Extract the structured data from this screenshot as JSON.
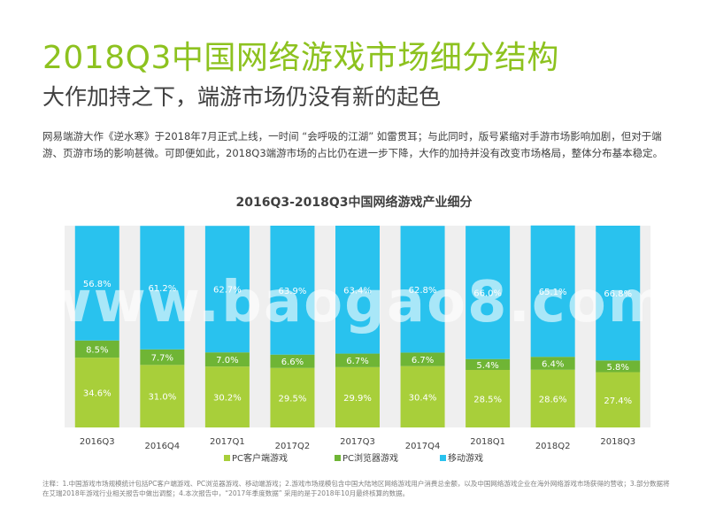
{
  "header": {
    "title": "2018Q3中国网络游戏市场细分结构",
    "subtitle": "大作加持之下，端游市场仍没有新的起色"
  },
  "body_text": "网易端游大作《逆水寒》于2018年7月正式上线，一时间 “会呼吸的江湖” 如雷贯耳；与此同时，版号紧缩对手游市场影响加剧，但对于端游、页游市场的影响甚微。可即便如此，2018Q3端游市场的占比仍在进一步下降，大作的加持并没有改变市场格局，整体分布基本稳定。",
  "footnote": "注释：1.中国游戏市场规模统计包括PC客户端游戏、PC浏览器游戏、移动端游戏；2.游戏市场规模包含中国大陆地区网络游戏用户消费总金额，以及中国网络游戏企业在海外网络游戏市场获得的营收；3.部分数据将在艾瑞2018年游戏行业相关报告中做出调整；4.本次报告中，“2017年季度数据” 采用的是于2018年10月最终核算的数据。",
  "watermark": "www.baogao8.com",
  "colors": {
    "title_green": "#8dc21f",
    "pc_client": "#a8cf3a",
    "pc_browser": "#6fb535",
    "mobile": "#29c2ee",
    "plot_bg": "#efefef"
  },
  "chart_data": {
    "type": "bar",
    "stacked": true,
    "percent": true,
    "title": "2016Q3-2018Q3中国网络游戏产业细分",
    "categories": [
      "2016Q3",
      "2016Q4",
      "2017Q1",
      "2017Q2",
      "2017Q3",
      "2017Q4",
      "2018Q1",
      "2018Q2",
      "2018Q3"
    ],
    "series": [
      {
        "name": "PC客户端游戏",
        "values": [
          34.6,
          31.0,
          30.2,
          29.5,
          29.9,
          30.4,
          28.5,
          28.6,
          27.4
        ],
        "labels": [
          "34.6%",
          "31.0%",
          "30.2%",
          "29.5%",
          "29.9%",
          "30.4%",
          "28.5%",
          "28.6%",
          "27.4%"
        ]
      },
      {
        "name": "PC浏览器游戏",
        "values": [
          8.5,
          7.7,
          7.0,
          6.6,
          6.7,
          6.7,
          5.4,
          6.4,
          5.8
        ],
        "labels": [
          "8.5%",
          "7.7%",
          "7.0%",
          "6.6%",
          "6.7%",
          "6.7%",
          "5.4%",
          "6.4%",
          "5.8%"
        ]
      },
      {
        "name": "移动游戏",
        "values": [
          56.8,
          61.2,
          62.7,
          63.9,
          63.4,
          62.8,
          66.0,
          65.1,
          66.8
        ],
        "labels": [
          "56.8%",
          "61.2%",
          "62.7%",
          "63.9%",
          "63.4%",
          "62.8%",
          "66.0%",
          "65.1%",
          "66.8%"
        ]
      }
    ],
    "ylim": [
      0,
      100
    ],
    "legend": "bottom"
  }
}
